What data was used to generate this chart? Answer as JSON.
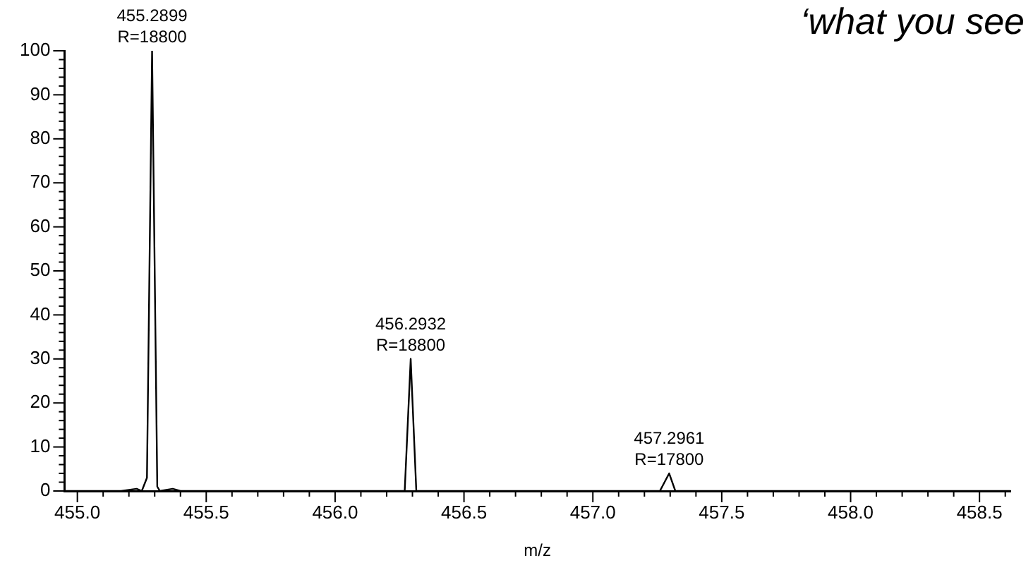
{
  "chart_data": {
    "type": "line",
    "title": "‘what you see",
    "xlabel": "m/z",
    "color": "#000000",
    "marker": "none",
    "line_style": "solid",
    "grid": false,
    "legend": false,
    "x": [
      454.95,
      455.17,
      455.23,
      455.25,
      455.27,
      455.2899,
      455.31,
      455.32,
      455.37,
      455.4,
      456.25,
      456.27,
      456.2932,
      456.315,
      457.26,
      457.2961,
      457.32,
      458.62
    ],
    "values": [
      0,
      0,
      0.5,
      0,
      3,
      100,
      1,
      0,
      0.5,
      0,
      0,
      0,
      30,
      0,
      0,
      4,
      0,
      0
    ],
    "annotations": [
      {
        "text": "455.2899\nR=18800",
        "x": 455.2899,
        "y": 100
      },
      {
        "text": "456.2932\nR=18800",
        "x": 456.2932,
        "y": 30
      },
      {
        "text": "457.2961\nR=17800",
        "x": 457.2961,
        "y": 4
      }
    ],
    "xlim": [
      454.95,
      458.62
    ],
    "ylim": [
      0,
      100
    ],
    "xticks": [
      {
        "value": 455,
        "label": "455.0"
      },
      {
        "value": 455.1,
        "label": null
      },
      {
        "value": 455.2,
        "label": null
      },
      {
        "value": 455.3,
        "label": null
      },
      {
        "value": 455.4,
        "label": null
      },
      {
        "value": 455.5,
        "label": "455.5"
      },
      {
        "value": 455.6,
        "label": null
      },
      {
        "value": 455.7,
        "label": null
      },
      {
        "value": 455.8,
        "label": null
      },
      {
        "value": 455.9,
        "label": null
      },
      {
        "value": 456,
        "label": "456.0"
      },
      {
        "value": 456.1,
        "label": null
      },
      {
        "value": 456.2,
        "label": null
      },
      {
        "value": 456.3,
        "label": null
      },
      {
        "value": 456.4,
        "label": null
      },
      {
        "value": 456.5,
        "label": "456.5"
      },
      {
        "value": 456.6,
        "label": null
      },
      {
        "value": 456.7,
        "label": null
      },
      {
        "value": 456.8,
        "label": null
      },
      {
        "value": 456.9,
        "label": null
      },
      {
        "value": 457,
        "label": "457.0"
      },
      {
        "value": 457.1,
        "label": null
      },
      {
        "value": 457.2,
        "label": null
      },
      {
        "value": 457.3,
        "label": null
      },
      {
        "value": 457.4,
        "label": null
      },
      {
        "value": 457.5,
        "label": "457.5"
      },
      {
        "value": 457.6,
        "label": null
      },
      {
        "value": 457.7,
        "label": null
      },
      {
        "value": 457.8,
        "label": null
      },
      {
        "value": 457.9,
        "label": null
      },
      {
        "value": 458,
        "label": "458.0"
      },
      {
        "value": 458.1,
        "label": null
      },
      {
        "value": 458.2,
        "label": null
      },
      {
        "value": 458.3,
        "label": null
      },
      {
        "value": 458.4,
        "label": null
      },
      {
        "value": 458.5,
        "label": "458.5"
      },
      {
        "value": 458.6,
        "label": null
      }
    ],
    "yticks": [
      0,
      {
        "value": 2,
        "label": null
      },
      {
        "value": 4,
        "label": null
      },
      {
        "value": 6,
        "label": null
      },
      {
        "value": 8,
        "label": null
      },
      10,
      {
        "value": 12,
        "label": null
      },
      {
        "value": 14,
        "label": null
      },
      {
        "value": 16,
        "label": null
      },
      {
        "value": 18,
        "label": null
      },
      20,
      {
        "value": 22,
        "label": null
      },
      {
        "value": 24,
        "label": null
      },
      {
        "value": 26,
        "label": null
      },
      {
        "value": 28,
        "label": null
      },
      30,
      {
        "value": 32,
        "label": null
      },
      {
        "value": 34,
        "label": null
      },
      {
        "value": 36,
        "label": null
      },
      {
        "value": 38,
        "label": null
      },
      40,
      {
        "value": 42,
        "label": null
      },
      {
        "value": 44,
        "label": null
      },
      {
        "value": 46,
        "label": null
      },
      {
        "value": 48,
        "label": null
      },
      50,
      {
        "value": 52,
        "label": null
      },
      {
        "value": 54,
        "label": null
      },
      {
        "value": 56,
        "label": null
      },
      {
        "value": 58,
        "label": null
      },
      60,
      {
        "value": 62,
        "label": null
      },
      {
        "value": 64,
        "label": null
      },
      {
        "value": 66,
        "label": null
      },
      {
        "value": 68,
        "label": null
      },
      70,
      {
        "value": 72,
        "label": null
      },
      {
        "value": 74,
        "label": null
      },
      {
        "value": 76,
        "label": null
      },
      {
        "value": 78,
        "label": null
      },
      80,
      {
        "value": 82,
        "label": null
      },
      {
        "value": 84,
        "label": null
      },
      {
        "value": 86,
        "label": null
      },
      {
        "value": 88,
        "label": null
      },
      90,
      {
        "value": 92,
        "label": null
      },
      {
        "value": 94,
        "label": null
      },
      {
        "value": 96,
        "label": null
      },
      {
        "value": 98,
        "label": null
      },
      100
    ]
  }
}
